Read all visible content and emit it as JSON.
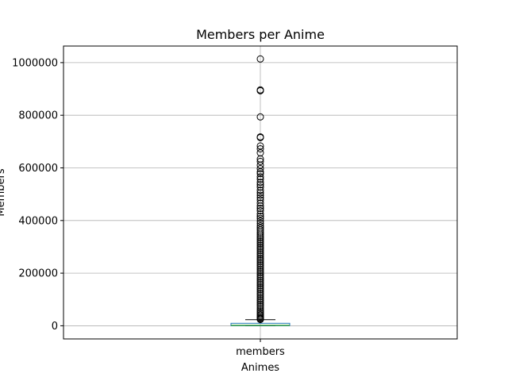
{
  "chart_data": {
    "type": "box",
    "title": "Members per Anime",
    "xlabel": "Animes",
    "ylabel": "Members",
    "ylim": [
      -50000,
      1063000
    ],
    "grid": true,
    "categories": [
      "members"
    ],
    "y_ticks": [
      {
        "value": 0,
        "label": "0"
      },
      {
        "value": 200000,
        "label": "200000"
      },
      {
        "value": 400000,
        "label": "400000"
      },
      {
        "value": 600000,
        "label": "600000"
      },
      {
        "value": 800000,
        "label": "800000"
      },
      {
        "value": 1000000,
        "label": "1000000"
      }
    ],
    "box": {
      "name": "members",
      "q1": 225,
      "median": 1550,
      "q3": 9440,
      "whisker_low": 5,
      "whisker_high": 23250
    },
    "outliers": [
      1013917,
      896229,
      893100,
      793665,
      717796,
      715151,
      683297,
      672471,
      657190,
      633817,
      624471,
      610000,
      597000,
      585000,
      578000,
      566000,
      557000,
      545000,
      536000,
      527000,
      515000,
      505000,
      496000,
      487000,
      478000,
      466000,
      455000,
      446000,
      437000,
      425000,
      416000,
      408000,
      398000,
      389000,
      380000,
      372000,
      364000,
      356000,
      348000,
      341000,
      334000,
      327000,
      320000,
      313000,
      306000,
      299000,
      292000,
      285000,
      278000,
      271000,
      264000,
      257000,
      250000,
      243000,
      236000,
      229000,
      222000,
      215000,
      208000,
      201000,
      194000,
      187000,
      180000,
      173000,
      166000,
      159000,
      152000,
      145000,
      138000,
      131000,
      124000,
      117000,
      110000,
      103000,
      96000,
      89000,
      82000,
      75000,
      68000,
      61000,
      54000,
      48000,
      42000,
      37000,
      32000,
      28000,
      25000,
      24000
    ],
    "colors": {
      "box": "#1f77b4",
      "median": "#2ca02c",
      "whisker": "#000000",
      "grid": "#b0b0b0"
    }
  }
}
